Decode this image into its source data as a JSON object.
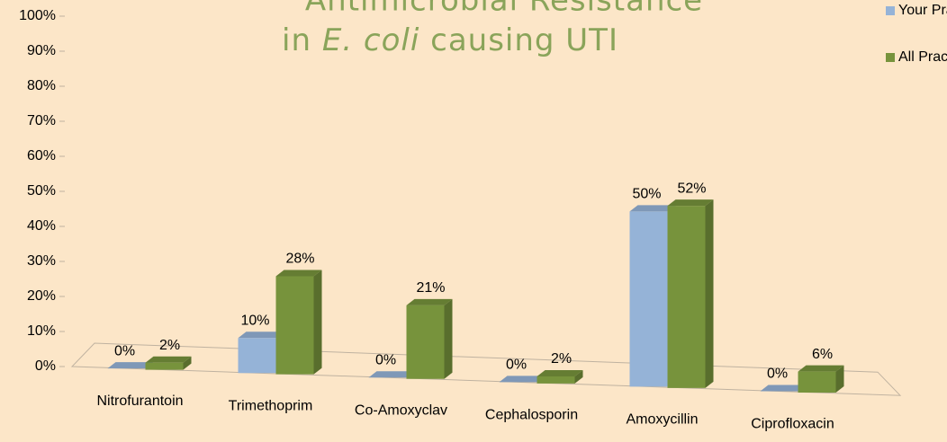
{
  "chart_data": {
    "type": "bar3d",
    "title": {
      "line1": "Antimicrobial Resistance",
      "line2": [
        "in ",
        "E. coli",
        " causing UTI"
      ]
    },
    "categories": [
      "Nitrofurantoin",
      "Trimethoprim",
      "Co-Amoxyclav",
      "Cephalosporin",
      "Amoxycillin",
      "Ciprofloxacin"
    ],
    "series": [
      {
        "name": "Your Practice",
        "color": "#95b3d7",
        "values": [
          0,
          10,
          0,
          0,
          50,
          0
        ],
        "value_labels": [
          "0%",
          "10%",
          "0%",
          "0%",
          "50%",
          "0%"
        ]
      },
      {
        "name": "All Practices",
        "color": "#77933c",
        "values": [
          2,
          28,
          21,
          2,
          52,
          6
        ],
        "value_labels": [
          "2%",
          "28%",
          "21%",
          "2%",
          "52%",
          "6%"
        ]
      }
    ],
    "ylim": [
      0,
      100
    ],
    "yticks": [
      {
        "value": 0,
        "label": "0%"
      },
      {
        "value": 10,
        "label": "10%"
      },
      {
        "value": 20,
        "label": "20%"
      },
      {
        "value": 30,
        "label": "30%"
      },
      {
        "value": 40,
        "label": "40%"
      },
      {
        "value": 50,
        "label": "50%"
      },
      {
        "value": 60,
        "label": "60%"
      },
      {
        "value": 70,
        "label": "70%"
      },
      {
        "value": 80,
        "label": "80%"
      },
      {
        "value": 90,
        "label": "90%"
      },
      {
        "value": 100,
        "label": "100%"
      }
    ],
    "legend": "top-right"
  }
}
